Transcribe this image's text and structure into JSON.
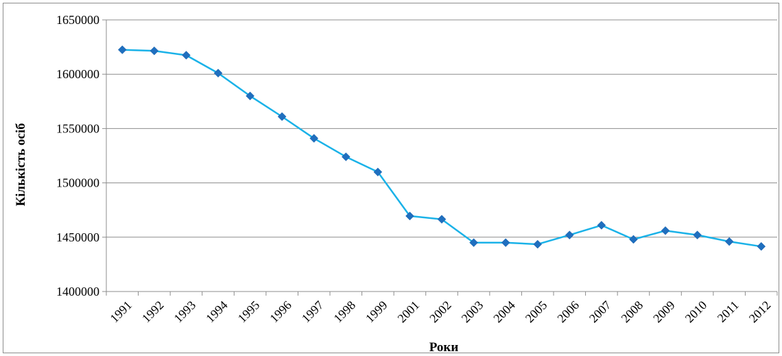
{
  "chart_data": {
    "type": "line",
    "title": "",
    "xlabel": "Роки",
    "ylabel": "Кількість осіб",
    "categories": [
      "1991",
      "1992",
      "1993",
      "1994",
      "1995",
      "1996",
      "1997",
      "1998",
      "1999",
      "2001",
      "2002",
      "2003",
      "2004",
      "2005",
      "2006",
      "2007",
      "2008",
      "2009",
      "2010",
      "2011",
      "2012"
    ],
    "series": [
      {
        "values": [
          1622500,
          1621500,
          1617500,
          1601000,
          1580000,
          1561000,
          1541000,
          1524000,
          1510000,
          1469500,
          1466500,
          1445000,
          1445000,
          1443500,
          1452000,
          1461000,
          1448000,
          1456000,
          1452000,
          1446000,
          1441500
        ]
      }
    ],
    "ylim": [
      1400000,
      1650000
    ],
    "yticks": [
      "1400000",
      "1450000",
      "1500000",
      "1550000",
      "1600000",
      "1650000"
    ],
    "grid": true,
    "legend": "none",
    "colors": {
      "line": "#1ab2e8",
      "marker": "#1f6fbf",
      "grid": "#8c8c8c"
    }
  }
}
